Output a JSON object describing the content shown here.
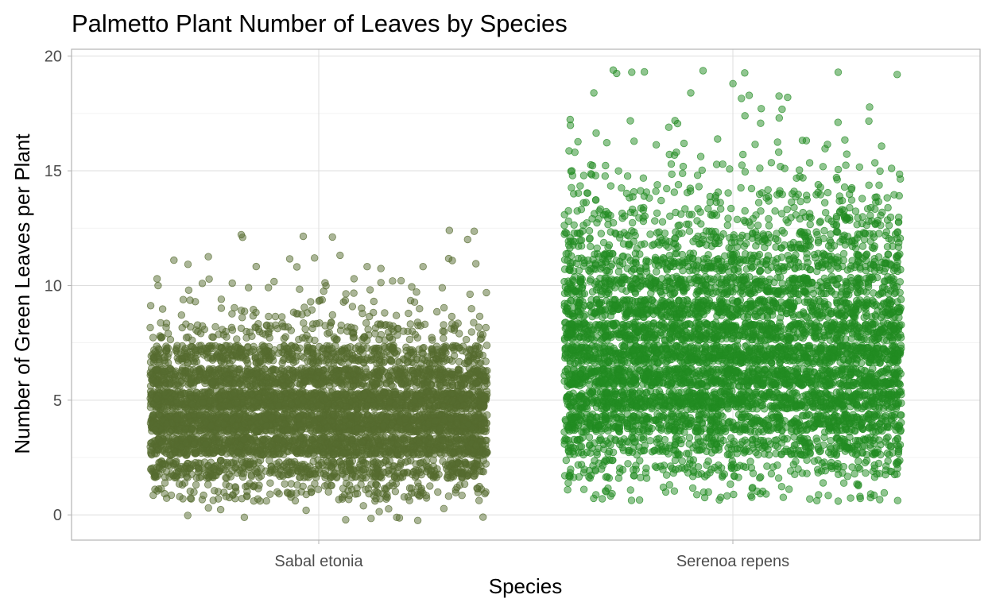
{
  "chart_data": {
    "type": "scatter",
    "title": "Palmetto Plant Number of Leaves by Species",
    "xlabel": "Species",
    "ylabel": "Number of Green Leaves per Plant",
    "categories": [
      "Sabal etonia",
      "Serenoa repens"
    ],
    "ylim": [
      -1.1,
      20.3
    ],
    "yticks": [
      0,
      5,
      10,
      15,
      20
    ],
    "grid": true,
    "legend": "none",
    "series": [
      {
        "category": "Sabal etonia",
        "color": "#556b2f",
        "point_count_approx": 6000,
        "distribution": {
          "0": 0.2,
          "1": 2.5,
          "2": 8,
          "3": 17,
          "4": 22,
          "5": 20,
          "6": 14,
          "7": 8,
          "8": 2.5,
          "9": 0.8,
          "10": 0.4,
          "11": 0.2,
          "12": 0.1
        },
        "outliers": [
          {
            "x": -0.01,
            "y": 11.2
          },
          {
            "x": 0.31,
            "y": 12.4
          },
          {
            "x": 0.39,
            "y": -0.1
          },
          {
            "x": -0.03,
            "y": 0.2
          }
        ]
      },
      {
        "category": "Serenoa repens",
        "color": "#228b22",
        "point_count_approx": 6000,
        "distribution": {
          "1": 1,
          "2": 3,
          "3": 6,
          "4": 10,
          "5": 13,
          "6": 14,
          "7": 14,
          "8": 12,
          "9": 10,
          "10": 8,
          "11": 6,
          "12": 4,
          "13": 2.5,
          "14": 1.5,
          "15": 0.8,
          "16": 0.4,
          "17": 0.2,
          "18": 0.1,
          "19": 0.1
        },
        "outliers": [
          {
            "x": -0.24,
            "y": 19.3
          },
          {
            "x": 0.25,
            "y": 19.3
          },
          {
            "x": 0.39,
            "y": 19.2
          },
          {
            "x": -0.33,
            "y": 18.4
          },
          {
            "x": -0.1,
            "y": 18.4
          },
          {
            "x": 0.13,
            "y": 18.2
          },
          {
            "x": 0.11,
            "y": 17.3
          },
          {
            "x": -0.31,
            "y": 0.7
          },
          {
            "x": 0.25,
            "y": 0.6
          }
        ]
      }
    ]
  }
}
